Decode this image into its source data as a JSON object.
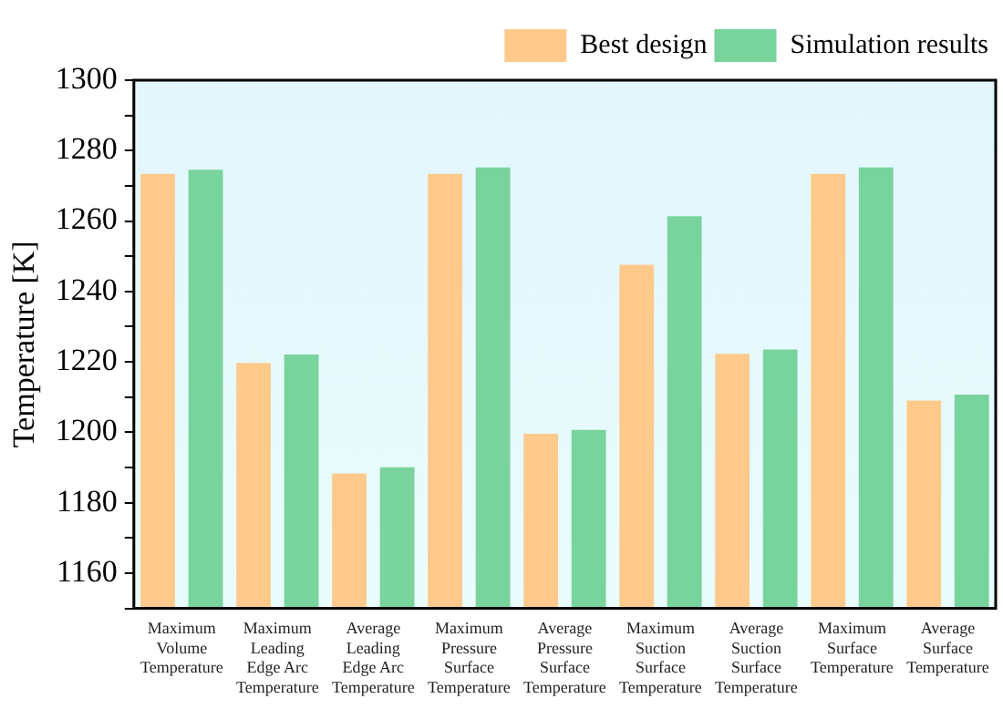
{
  "chart_data": {
    "type": "bar",
    "ylabel": "Temperature [K]",
    "categories": [
      "Maximum Volume Temperature",
      "Maximum Leading Edge Arc Temperature",
      "Average Leading Edge Arc Temperature",
      "Maximum Pressure Surface Temperature",
      "Average Pressure Surface Temperature",
      "Maximum Suction Surface Temperature",
      "Average Suction Surface Temperature",
      "Maximum Surface Temperature",
      "Average Surface Temperature"
    ],
    "series": [
      {
        "name": "Best design",
        "color": "#fdca8c",
        "values": [
          1273.4,
          1219.7,
          1188.3,
          1273.4,
          1199.6,
          1247.6,
          1222.3,
          1273.4,
          1209.0
        ]
      },
      {
        "name": "Simulation results",
        "color": "#78d49c",
        "values": [
          1274.6,
          1222.1,
          1190.1,
          1275.2,
          1200.7,
          1261.4,
          1223.5,
          1275.2,
          1210.7
        ]
      }
    ],
    "ylim": [
      1150,
      1300
    ],
    "yticks": [
      {
        "value": 1150,
        "label": null
      },
      1160,
      {
        "value": 1170,
        "label": null
      },
      1180,
      {
        "value": 1190,
        "label": null
      },
      1200,
      {
        "value": 1210,
        "label": null
      },
      1220,
      {
        "value": 1230,
        "label": null
      },
      1240,
      {
        "value": 1250,
        "label": null
      },
      1260,
      {
        "value": 1270,
        "label": null
      },
      1280,
      {
        "value": 1290,
        "label": null
      },
      1300
    ],
    "grid": false,
    "legend": "top right"
  }
}
